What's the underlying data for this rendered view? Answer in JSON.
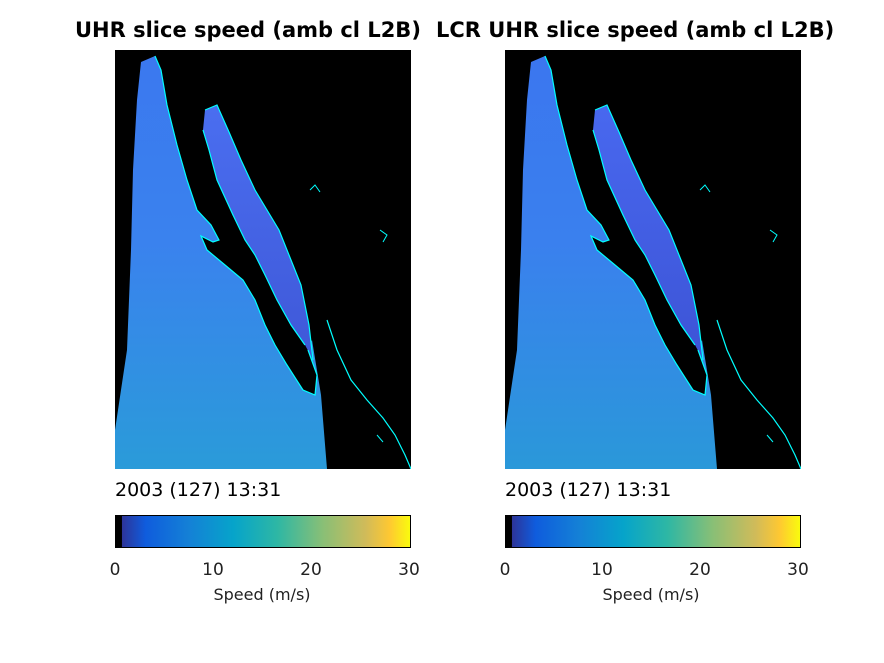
{
  "panels": [
    {
      "title": "UHR slice speed (amb cl L2B)",
      "timestamp": "2003 (127) 13:31",
      "colorbar": {
        "ticks": [
          "0",
          "10",
          "20",
          "30"
        ],
        "label": "Speed (m/s)"
      }
    },
    {
      "title": "LCR UHR slice speed (amb cl L2B)",
      "timestamp": "2003 (127) 13:31",
      "colorbar": {
        "ticks": [
          "0",
          "10",
          "20",
          "30"
        ],
        "label": "Speed (m/s)"
      }
    }
  ],
  "colors": {
    "background_land": "#000000",
    "coastline": "#00ffff",
    "ocean_low_speed": "#3d7cf0",
    "ocean_mid_speed": "#2a9ed8",
    "colormap": "parula"
  }
}
